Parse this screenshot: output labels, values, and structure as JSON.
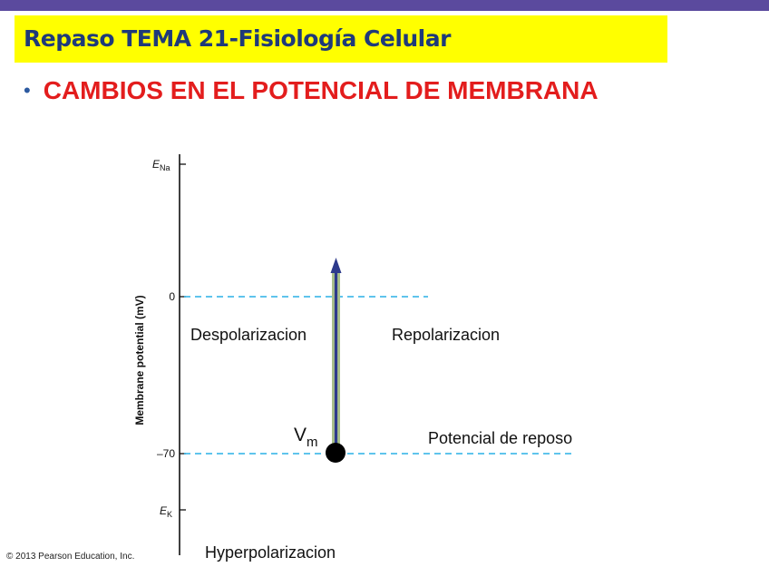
{
  "slide": {
    "title": "Repaso TEMA 21-Fisiología Celular",
    "bullet": "CAMBIOS EN EL POTENCIAL DE MEMBRANA",
    "colors": {
      "topbar": "#5b4a9e",
      "title_bg": "#ffff00",
      "title_text": "#1f3a7a",
      "bullet_text": "#e31d1d",
      "arrow": "#2d3a8c",
      "dashed": "#2ab0e6"
    }
  },
  "diagram": {
    "axis_label": "Membrane potential (mV)",
    "ticks": {
      "ena_main": "E",
      "ena_sub": "Na",
      "zero": "0",
      "minus70": "–70",
      "ek_main": "E",
      "ek_sub": "K"
    },
    "labels": {
      "depolarization": "Despolarizacion",
      "repolarization": "Repolarizacion",
      "vm_main": "V",
      "vm_sub": "m",
      "resting": "Potencial de reposo",
      "hyperpolarization": "Hyperpolarizacion"
    }
  },
  "copyright": "© 2013 Pearson Education, Inc."
}
